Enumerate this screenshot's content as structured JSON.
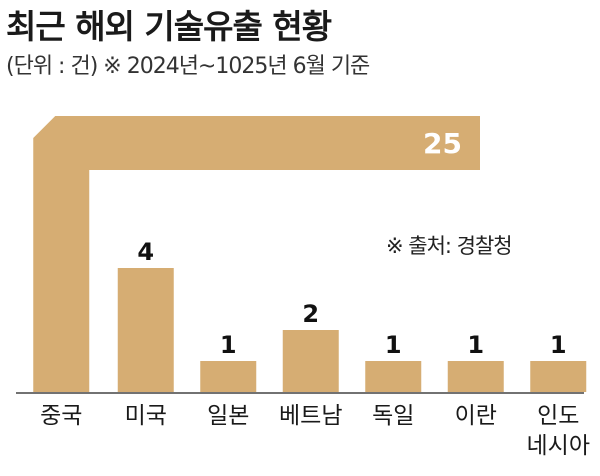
{
  "title": "최근 해외 기술유출 현황",
  "subtitle": "(단위 : 건) ※ 2024년~1025년 6월 기준",
  "source": "※ 출처: 경찰청",
  "colors": {
    "bar": "#d6ad73",
    "baseline": "#444444"
  },
  "chart_data": {
    "type": "bar",
    "categories": [
      "중국",
      "미국",
      "일본",
      "베트남",
      "독일",
      "이란",
      "인도\n네시아"
    ],
    "values": [
      25,
      4,
      1,
      2,
      1,
      1,
      1
    ],
    "title": "최근 해외 기술유출 현황",
    "xlabel": "",
    "ylabel": "",
    "unit": "건"
  }
}
